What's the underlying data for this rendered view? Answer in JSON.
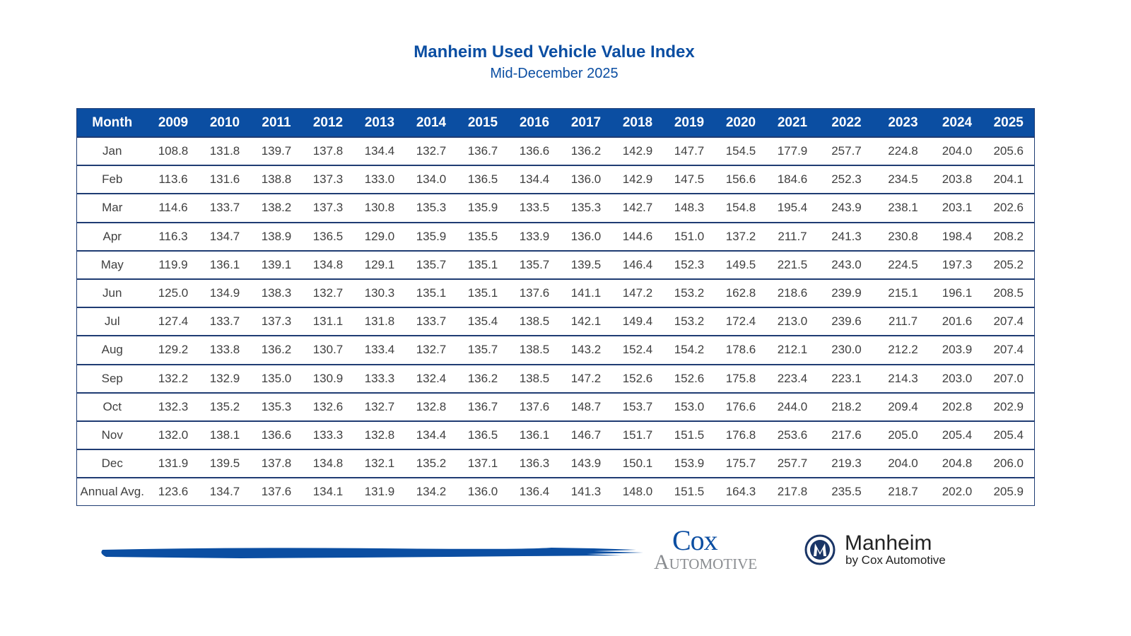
{
  "header": {
    "title": "Manheim Used Vehicle Value Index",
    "subtitle": "Mid-December 2025"
  },
  "colors": {
    "brand_blue": "#0b4ea2",
    "border": "#1f3c73",
    "text": "#404040"
  },
  "chart_data": {
    "type": "table",
    "title": "Manheim Used Vehicle Value Index",
    "subtitle": "Mid-December 2025",
    "columns": [
      "Month",
      "2009",
      "2010",
      "2011",
      "2012",
      "2013",
      "2014",
      "2015",
      "2016",
      "2017",
      "2018",
      "2019",
      "2020",
      "2021",
      "2022",
      "2023",
      "2024",
      "2025"
    ],
    "rows": [
      [
        "Jan",
        "108.8",
        "131.8",
        "139.7",
        "137.8",
        "134.4",
        "132.7",
        "136.7",
        "136.6",
        "136.2",
        "142.9",
        "147.7",
        "154.5",
        "177.9",
        "257.7",
        "224.8",
        "204.0",
        "205.6"
      ],
      [
        "Feb",
        "113.6",
        "131.6",
        "138.8",
        "137.3",
        "133.0",
        "134.0",
        "136.5",
        "134.4",
        "136.0",
        "142.9",
        "147.5",
        "156.6",
        "184.6",
        "252.3",
        "234.5",
        "203.8",
        "204.1"
      ],
      [
        "Mar",
        "114.6",
        "133.7",
        "138.2",
        "137.3",
        "130.8",
        "135.3",
        "135.9",
        "133.5",
        "135.3",
        "142.7",
        "148.3",
        "154.8",
        "195.4",
        "243.9",
        "238.1",
        "203.1",
        "202.6"
      ],
      [
        "Apr",
        "116.3",
        "134.7",
        "138.9",
        "136.5",
        "129.0",
        "135.9",
        "135.5",
        "133.9",
        "136.0",
        "144.6",
        "151.0",
        "137.2",
        "211.7",
        "241.3",
        "230.8",
        "198.4",
        "208.2"
      ],
      [
        "May",
        "119.9",
        "136.1",
        "139.1",
        "134.8",
        "129.1",
        "135.7",
        "135.1",
        "135.7",
        "139.5",
        "146.4",
        "152.3",
        "149.5",
        "221.5",
        "243.0",
        "224.5",
        "197.3",
        "205.2"
      ],
      [
        "Jun",
        "125.0",
        "134.9",
        "138.3",
        "132.7",
        "130.3",
        "135.1",
        "135.1",
        "137.6",
        "141.1",
        "147.2",
        "153.2",
        "162.8",
        "218.6",
        "239.9",
        "215.1",
        "196.1",
        "208.5"
      ],
      [
        "Jul",
        "127.4",
        "133.7",
        "137.3",
        "131.1",
        "131.8",
        "133.7",
        "135.4",
        "138.5",
        "142.1",
        "149.4",
        "153.2",
        "172.4",
        "213.0",
        "239.6",
        "211.7",
        "201.6",
        "207.4"
      ],
      [
        "Aug",
        "129.2",
        "133.8",
        "136.2",
        "130.7",
        "133.4",
        "132.7",
        "135.7",
        "138.5",
        "143.2",
        "152.4",
        "154.2",
        "178.6",
        "212.1",
        "230.0",
        "212.2",
        "203.9",
        "207.4"
      ],
      [
        "Sep",
        "132.2",
        "132.9",
        "135.0",
        "130.9",
        "133.3",
        "132.4",
        "136.2",
        "138.5",
        "147.2",
        "152.6",
        "152.6",
        "175.8",
        "223.4",
        "223.1",
        "214.3",
        "203.0",
        "207.0"
      ],
      [
        "Oct",
        "132.3",
        "135.2",
        "135.3",
        "132.6",
        "132.7",
        "132.8",
        "136.7",
        "137.6",
        "148.7",
        "153.7",
        "153.0",
        "176.6",
        "244.0",
        "218.2",
        "209.4",
        "202.8",
        "202.9"
      ],
      [
        "Nov",
        "132.0",
        "138.1",
        "136.6",
        "133.3",
        "132.8",
        "134.4",
        "136.5",
        "136.1",
        "146.7",
        "151.7",
        "151.5",
        "176.8",
        "253.6",
        "217.6",
        "205.0",
        "205.4",
        "205.4"
      ],
      [
        "Dec",
        "131.9",
        "139.5",
        "137.8",
        "134.8",
        "132.1",
        "135.2",
        "137.1",
        "136.3",
        "143.9",
        "150.1",
        "153.9",
        "175.7",
        "257.7",
        "219.3",
        "204.0",
        "204.8",
        "206.0"
      ],
      [
        "Annual Avg.",
        "123.6",
        "134.7",
        "137.6",
        "134.1",
        "131.9",
        "134.2",
        "136.0",
        "136.4",
        "141.3",
        "148.0",
        "151.5",
        "164.3",
        "217.8",
        "235.5",
        "218.7",
        "202.0",
        "205.9"
      ]
    ]
  },
  "footer": {
    "cox_logo_line1": "Cox",
    "cox_logo_line2": "Automotive",
    "manheim_name": "Manheim",
    "manheim_tagline": "by Cox Automotive"
  }
}
